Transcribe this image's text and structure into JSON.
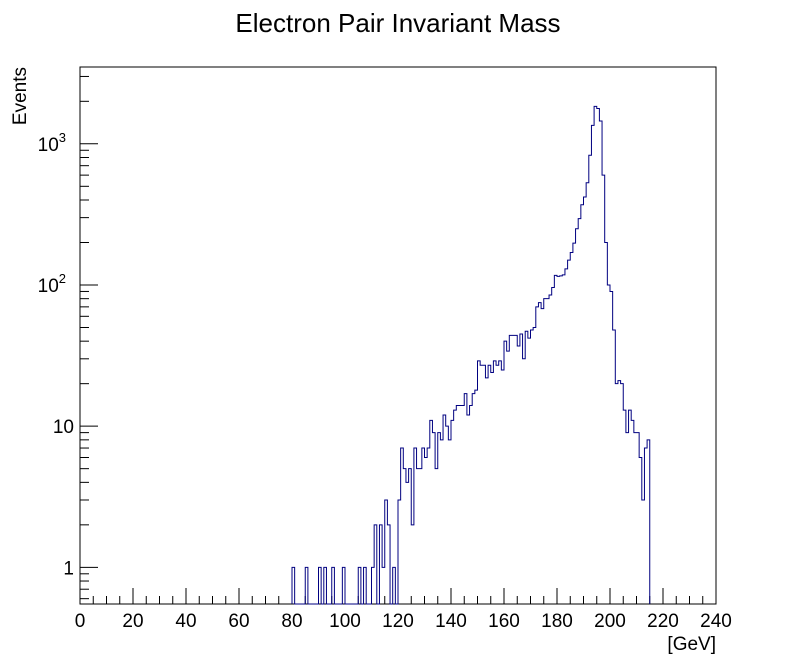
{
  "chart_data": {
    "type": "histogram",
    "title": "Electron Pair Invariant Mass",
    "xlabel": "[GeV]",
    "ylabel": "Events",
    "xlim": [
      0,
      240
    ],
    "ylim": [
      0.55,
      3500
    ],
    "yscale": "log",
    "grid": false,
    "x_ticks": [
      "0",
      "20",
      "40",
      "60",
      "80",
      "100",
      "120",
      "140",
      "160",
      "180",
      "200",
      "220",
      "240"
    ],
    "y_ticks": [
      {
        "value": 1,
        "label": "1"
      },
      {
        "value": 10,
        "label": "10"
      },
      {
        "value": 100,
        "label": "10",
        "exp": "2"
      },
      {
        "value": 1000,
        "label": "10",
        "exp": "3"
      }
    ],
    "bin_width": 1,
    "series": [
      {
        "color": "#000080",
        "bins": [
          [
            80,
            1
          ],
          [
            81,
            0
          ],
          [
            82,
            0
          ],
          [
            83,
            0
          ],
          [
            84,
            0
          ],
          [
            85,
            1
          ],
          [
            86,
            0
          ],
          [
            87,
            0
          ],
          [
            88,
            0
          ],
          [
            89,
            0
          ],
          [
            90,
            1
          ],
          [
            91,
            0
          ],
          [
            92,
            1
          ],
          [
            93,
            0
          ],
          [
            94,
            0
          ],
          [
            95,
            1
          ],
          [
            96,
            0
          ],
          [
            97,
            0
          ],
          [
            98,
            0
          ],
          [
            99,
            1
          ],
          [
            100,
            0
          ],
          [
            101,
            0
          ],
          [
            102,
            0
          ],
          [
            103,
            0
          ],
          [
            104,
            0
          ],
          [
            105,
            1
          ],
          [
            106,
            0
          ],
          [
            107,
            1
          ],
          [
            108,
            0
          ],
          [
            109,
            0
          ],
          [
            110,
            1
          ],
          [
            111,
            2
          ],
          [
            112,
            0
          ],
          [
            113,
            2
          ],
          [
            114,
            1
          ],
          [
            115,
            3
          ],
          [
            116,
            2
          ],
          [
            117,
            0
          ],
          [
            118,
            1
          ],
          [
            119,
            0
          ],
          [
            120,
            3
          ],
          [
            121,
            7
          ],
          [
            122,
            5
          ],
          [
            123,
            4
          ],
          [
            124,
            5
          ],
          [
            125,
            2
          ],
          [
            126,
            7
          ],
          [
            127,
            5
          ],
          [
            128,
            5
          ],
          [
            129,
            7
          ],
          [
            130,
            6
          ],
          [
            131,
            7
          ],
          [
            132,
            11
          ],
          [
            133,
            9
          ],
          [
            134,
            5
          ],
          [
            135,
            9
          ],
          [
            136,
            8
          ],
          [
            137,
            12
          ],
          [
            138,
            10
          ],
          [
            139,
            8
          ],
          [
            140,
            11
          ],
          [
            141,
            13
          ],
          [
            142,
            14
          ],
          [
            143,
            14
          ],
          [
            144,
            14
          ],
          [
            145,
            17
          ],
          [
            146,
            12
          ],
          [
            147,
            14
          ],
          [
            148,
            17
          ],
          [
            149,
            18
          ],
          [
            150,
            29
          ],
          [
            151,
            27
          ],
          [
            152,
            27
          ],
          [
            153,
            22
          ],
          [
            154,
            27
          ],
          [
            155,
            24
          ],
          [
            156,
            29
          ],
          [
            157,
            27
          ],
          [
            158,
            29
          ],
          [
            159,
            25
          ],
          [
            160,
            40
          ],
          [
            161,
            34
          ],
          [
            162,
            44
          ],
          [
            163,
            44
          ],
          [
            164,
            44
          ],
          [
            165,
            37
          ],
          [
            166,
            45
          ],
          [
            167,
            30
          ],
          [
            168,
            47
          ],
          [
            169,
            42
          ],
          [
            170,
            48
          ],
          [
            171,
            50
          ],
          [
            172,
            70
          ],
          [
            173,
            75
          ],
          [
            174,
            68
          ],
          [
            175,
            80
          ],
          [
            176,
            80
          ],
          [
            177,
            85
          ],
          [
            178,
            96
          ],
          [
            179,
            117
          ],
          [
            180,
            115
          ],
          [
            181,
            116
          ],
          [
            182,
            118
          ],
          [
            183,
            130
          ],
          [
            184,
            150
          ],
          [
            185,
            170
          ],
          [
            186,
            198
          ],
          [
            187,
            250
          ],
          [
            188,
            295
          ],
          [
            189,
            370
          ],
          [
            190,
            420
          ],
          [
            191,
            530
          ],
          [
            192,
            830
          ],
          [
            193,
            1350
          ],
          [
            194,
            1840
          ],
          [
            195,
            1780
          ],
          [
            196,
            1450
          ],
          [
            197,
            600
          ],
          [
            198,
            200
          ],
          [
            199,
            100
          ],
          [
            200,
            90
          ],
          [
            201,
            48
          ],
          [
            202,
            20
          ],
          [
            203,
            21
          ],
          [
            204,
            20
          ],
          [
            205,
            13
          ],
          [
            206,
            9
          ],
          [
            207,
            13
          ],
          [
            208,
            11
          ],
          [
            209,
            9
          ],
          [
            210,
            9
          ],
          [
            211,
            6
          ],
          [
            212,
            3
          ],
          [
            213,
            7
          ],
          [
            214,
            8
          ]
        ]
      }
    ]
  }
}
